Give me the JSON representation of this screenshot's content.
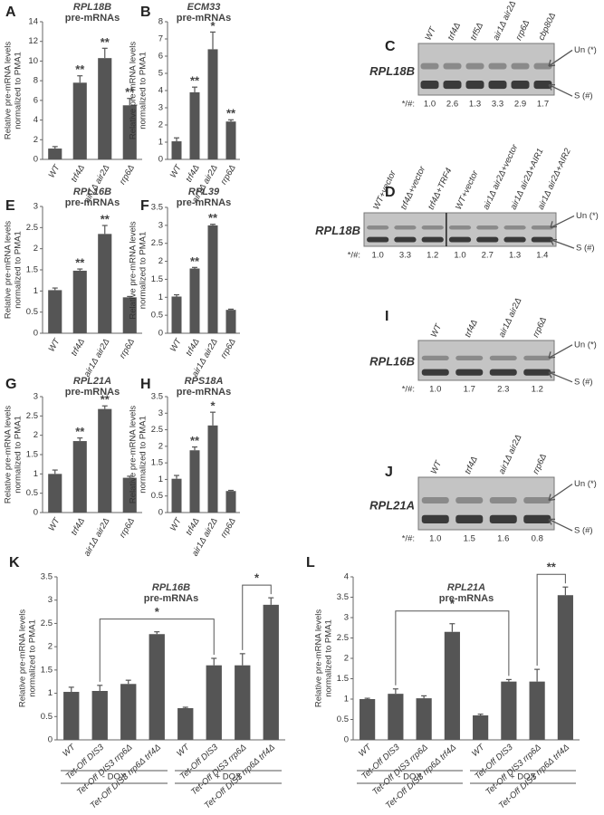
{
  "chart_data": [
    {
      "type": "bar",
      "label": "A",
      "title": "RPL18B",
      "subtitle": "pre-mRNAs",
      "ylabel": [
        "Relative pre-mRNA levels",
        "normalized to PMA1"
      ],
      "categories": [
        "WT",
        "trf4Δ",
        "air1Δ air2Δ",
        "rrp6Δ"
      ],
      "values": [
        1.1,
        7.8,
        10.3,
        5.5
      ],
      "errors": [
        0.2,
        0.7,
        1.0,
        0.7
      ],
      "significance": [
        null,
        "**",
        "**",
        "**"
      ],
      "color": "#555555",
      "ylim": [
        0,
        14
      ],
      "yticks": [
        0,
        2,
        4,
        6,
        8,
        10,
        12,
        14
      ]
    },
    {
      "type": "bar",
      "label": "B",
      "title": "ECM33",
      "subtitle": "pre-mRNAs",
      "ylabel": [
        "Relative pre-mRNA levels",
        "normalized to PMA1"
      ],
      "categories": [
        "WT",
        "trf4Δ",
        "air1Δ air2Δ",
        "rrp6Δ"
      ],
      "values": [
        1.05,
        3.9,
        6.4,
        2.2
      ],
      "errors": [
        0.2,
        0.3,
        1.0,
        0.1
      ],
      "significance": [
        null,
        "**",
        "*",
        "**"
      ],
      "color": "#555555",
      "ylim": [
        0,
        8
      ],
      "yticks": [
        0,
        1,
        2,
        3,
        4,
        5,
        6,
        7,
        8
      ]
    },
    {
      "type": "bar",
      "label": "E",
      "title": "RPL16B",
      "subtitle": "pre-mRNAs",
      "ylabel": [
        "Relative pre-mRNA levels",
        "normalized to PMA1"
      ],
      "categories": [
        "WT",
        "trf4Δ",
        "air1Δ air2Δ",
        "rrp6Δ"
      ],
      "values": [
        1.02,
        1.48,
        2.35,
        0.85
      ],
      "errors": [
        0.05,
        0.04,
        0.2,
        0.02
      ],
      "significance": [
        null,
        "**",
        "**",
        null
      ],
      "color": "#555555",
      "ylim": [
        0,
        3
      ],
      "yticks": [
        0,
        0.5,
        1,
        1.5,
        2,
        2.5,
        3
      ]
    },
    {
      "type": "bar",
      "label": "F",
      "title": "RPL39",
      "subtitle": "pre-mRNAs",
      "ylabel": [
        "Relative pre-mRNA levels",
        "normalized to PMA1"
      ],
      "categories": [
        "WT",
        "trf4Δ",
        "air1Δ air2Δ",
        "rrp6Δ"
      ],
      "values": [
        1.02,
        1.8,
        3.0,
        0.65
      ],
      "errors": [
        0.05,
        0.03,
        0.03,
        0.02
      ],
      "significance": [
        null,
        "**",
        "**",
        null
      ],
      "color": "#555555",
      "ylim": [
        0,
        3.5
      ],
      "yticks": [
        0,
        0.5,
        1,
        1.5,
        2,
        2.5,
        3,
        3.5
      ]
    },
    {
      "type": "bar",
      "label": "G",
      "title": "RPL21A",
      "subtitle": "pre-mRNAs",
      "ylabel": [
        "Relative pre-mRNA levels",
        "normalized to PMA1"
      ],
      "categories": [
        "WT",
        "trf4Δ",
        "air1Δ air2Δ",
        "rrp6Δ"
      ],
      "values": [
        1.0,
        1.85,
        2.68,
        0.9
      ],
      "errors": [
        0.1,
        0.08,
        0.08,
        0.04
      ],
      "significance": [
        null,
        "**",
        "**",
        null
      ],
      "color": "#555555",
      "ylim": [
        0,
        3
      ],
      "yticks": [
        0,
        0.5,
        1,
        1.5,
        2,
        2.5,
        3
      ]
    },
    {
      "type": "bar",
      "label": "H",
      "title": "RPS18A",
      "subtitle": "pre-mRNAs",
      "ylabel": [
        "Relative pre-mRNA levels",
        "normalized to PMA1"
      ],
      "categories": [
        "WT",
        "trf4Δ",
        "air1Δ air2Δ",
        "rrp6Δ"
      ],
      "values": [
        1.02,
        1.88,
        2.63,
        0.65
      ],
      "errors": [
        0.1,
        0.1,
        0.4,
        0.02
      ],
      "significance": [
        null,
        "**",
        "*",
        null
      ],
      "color": "#555555",
      "ylim": [
        0,
        3.5
      ],
      "yticks": [
        0,
        0.5,
        1,
        1.5,
        2,
        2.5,
        3,
        3.5
      ]
    },
    {
      "type": "bar",
      "label": "K",
      "title": "RPL16B",
      "subtitle": "pre-mRNAs",
      "ylabel": [
        "Relative pre-mRNA levels",
        "normalized to PMA1"
      ],
      "categories": [
        "WT",
        "Tet-Off DIS3",
        "Tet-Off DIS3 rrp6Δ",
        "Tet-Off DIS3 rrp6Δ trf4Δ",
        "WT",
        "Tet-Off DIS3",
        "Tet-Off DIS3 rrp6Δ",
        "Tet-Off DIS3 rrp6Δ trf4Δ"
      ],
      "values": [
        1.03,
        1.05,
        1.2,
        2.27,
        0.68,
        1.6,
        1.6,
        2.9
      ],
      "errors": [
        0.1,
        0.12,
        0.08,
        0.05,
        0.02,
        0.15,
        0.25,
        0.15
      ],
      "brackets": [
        "*",
        "*"
      ],
      "groups": [
        "- DOX",
        "+ DOX"
      ],
      "color": "#555555",
      "ylim": [
        0,
        3.5
      ],
      "yticks": [
        0,
        0.5,
        1,
        1.5,
        2,
        2.5,
        3,
        3.5
      ]
    },
    {
      "type": "bar",
      "label": "L",
      "title": "RPL21A",
      "subtitle": "pre-mRNAs",
      "ylabel": [
        "Relative pre-mRNA levels",
        "normalized to PMA1"
      ],
      "categories": [
        "WT",
        "Tet-Off DIS3",
        "Tet-Off DIS3 rrp6Δ",
        "Tet-Off DIS3 rrp6Δ trf4Δ",
        "WT",
        "Tet-Off DIS3",
        "Tet-Off DIS3 rrp6Δ",
        "Tet-Off DIS3 rrp6Δ trf4Δ"
      ],
      "values": [
        1.0,
        1.13,
        1.02,
        2.65,
        0.6,
        1.43,
        1.43,
        3.55
      ],
      "errors": [
        0.02,
        0.12,
        0.06,
        0.2,
        0.03,
        0.05,
        0.3,
        0.2
      ],
      "brackets": [
        "*",
        "**"
      ],
      "groups": [
        "- DOX",
        "+ DOX"
      ],
      "color": "#555555",
      "ylim": [
        0,
        4
      ],
      "yticks": [
        0,
        0.5,
        1,
        1.5,
        2,
        2.5,
        3,
        3.5,
        4
      ]
    }
  ],
  "gels": [
    {
      "label": "C",
      "gene": "RPL18B",
      "lanes": [
        "WT",
        "trf4Δ",
        "trf5Δ",
        "air1Δ air2Δ",
        "rrp6Δ",
        "cbp80Δ"
      ],
      "ratio_label": "*/#:",
      "ratios": [
        "1.0",
        "2.6",
        "1.3",
        "3.3",
        "2.9",
        "1.7"
      ],
      "unspliced": "Un (*)",
      "spliced": "S (#)"
    },
    {
      "label": "D",
      "gene": "RPL18B",
      "lanes": [
        "WT+vector",
        "trf4Δ+vector",
        "trf4Δ+TRF4",
        "WT+vector",
        "air1Δ air2Δ+vector",
        "air1Δ air2Δ+AIR1",
        "air1Δ air2Δ+AIR2"
      ],
      "ratio_label": "*/#:",
      "ratios": [
        "1.0",
        "3.3",
        "1.2",
        "1.0",
        "2.7",
        "1.3",
        "1.4"
      ],
      "unspliced": "Un (*)",
      "spliced": "S (#)"
    },
    {
      "label": "I",
      "gene": "RPL16B",
      "lanes": [
        "WT",
        "trf4Δ",
        "air1Δ air2Δ",
        "rrp6Δ"
      ],
      "ratio_label": "*/#:",
      "ratios": [
        "1.0",
        "1.7",
        "2.3",
        "1.2"
      ],
      "unspliced": "Un (*)",
      "spliced": "S (#)"
    },
    {
      "label": "J",
      "gene": "RPL21A",
      "lanes": [
        "WT",
        "trf4Δ",
        "air1Δ air2Δ",
        "rrp6Δ"
      ],
      "ratio_label": "*/#:",
      "ratios": [
        "1.0",
        "1.5",
        "1.6",
        "0.8"
      ],
      "unspliced": "Un (*)",
      "spliced": "S (#)"
    }
  ]
}
